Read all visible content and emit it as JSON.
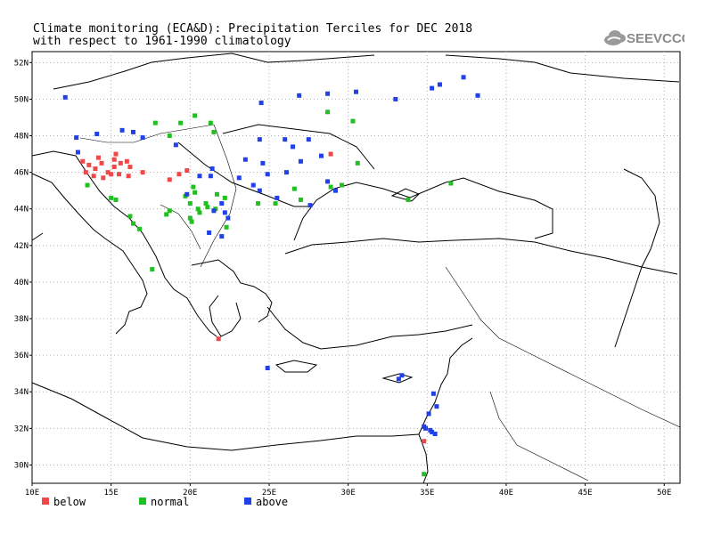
{
  "header": {
    "title_line1": "Climate monitoring (ECA&D): Precipitation Terciles for DEC 2018",
    "title_line2": "with respect to 1961-1990 climatology",
    "logo_text": "SEEVCCC"
  },
  "axes": {
    "lat_labels": [
      "52N",
      "50N",
      "48N",
      "46N",
      "44N",
      "42N",
      "40N",
      "38N",
      "36N",
      "34N",
      "32N",
      "30N"
    ],
    "lon_labels": [
      "10E",
      "15E",
      "20E",
      "25E",
      "30E",
      "35E",
      "40E",
      "45E",
      "50E"
    ]
  },
  "legend": [
    {
      "label": "below",
      "color": "#f04848"
    },
    {
      "label": "normal",
      "color": "#20c020"
    },
    {
      "label": "above",
      "color": "#2040e8"
    }
  ],
  "colors": {
    "below": "#f04848",
    "normal": "#20c020",
    "above": "#2040e8",
    "grid": "#b0b0b0"
  },
  "stations": {
    "below": [
      [
        13.2,
        46.6
      ],
      [
        13.6,
        46.4
      ],
      [
        14.0,
        46.2
      ],
      [
        14.4,
        46.5
      ],
      [
        14.8,
        46.0
      ],
      [
        15.2,
        46.3
      ],
      [
        15.6,
        46.5
      ],
      [
        16.0,
        46.6
      ],
      [
        16.2,
        46.3
      ],
      [
        13.4,
        46.0
      ],
      [
        13.9,
        45.8
      ],
      [
        14.5,
        45.7
      ],
      [
        15.0,
        45.9
      ],
      [
        15.5,
        45.9
      ],
      [
        15.2,
        46.7
      ],
      [
        14.2,
        46.8
      ],
      [
        16.1,
        45.8
      ],
      [
        15.3,
        47.0
      ],
      [
        17.0,
        46.0
      ],
      [
        18.7,
        45.6
      ],
      [
        19.3,
        45.9
      ],
      [
        19.8,
        46.1
      ],
      [
        28.9,
        47.0
      ],
      [
        21.8,
        36.9
      ],
      [
        34.8,
        31.3
      ]
    ],
    "normal": [
      [
        13.5,
        45.3
      ],
      [
        15.0,
        44.6
      ],
      [
        15.3,
        44.5
      ],
      [
        16.2,
        43.6
      ],
      [
        16.4,
        43.2
      ],
      [
        16.8,
        42.9
      ],
      [
        17.6,
        40.7
      ],
      [
        17.8,
        48.7
      ],
      [
        18.7,
        48.0
      ],
      [
        19.4,
        48.7
      ],
      [
        20.3,
        49.1
      ],
      [
        21.3,
        48.7
      ],
      [
        21.5,
        48.2
      ],
      [
        18.5,
        43.7
      ],
      [
        18.7,
        43.9
      ],
      [
        19.7,
        44.7
      ],
      [
        20.0,
        44.3
      ],
      [
        20.3,
        44.9
      ],
      [
        20.5,
        44.0
      ],
      [
        21.0,
        44.3
      ],
      [
        21.1,
        44.1
      ],
      [
        21.6,
        44.0
      ],
      [
        21.7,
        44.8
      ],
      [
        22.2,
        44.6
      ],
      [
        22.3,
        43.0
      ],
      [
        20.0,
        43.5
      ],
      [
        20.1,
        43.3
      ],
      [
        20.6,
        43.8
      ],
      [
        20.2,
        45.2
      ],
      [
        25.4,
        44.3
      ],
      [
        26.6,
        45.1
      ],
      [
        28.7,
        49.3
      ],
      [
        30.3,
        48.8
      ],
      [
        30.6,
        46.5
      ],
      [
        28.9,
        45.2
      ],
      [
        29.6,
        45.3
      ],
      [
        33.8,
        44.5
      ],
      [
        36.5,
        45.4
      ],
      [
        27.0,
        44.5
      ],
      [
        24.3,
        44.3
      ],
      [
        34.8,
        29.5
      ]
    ],
    "above": [
      [
        12.1,
        50.1
      ],
      [
        12.8,
        47.9
      ],
      [
        12.9,
        47.1
      ],
      [
        14.1,
        48.1
      ],
      [
        15.7,
        48.3
      ],
      [
        16.4,
        48.2
      ],
      [
        17.0,
        47.9
      ],
      [
        19.1,
        47.5
      ],
      [
        24.5,
        49.8
      ],
      [
        26.9,
        50.2
      ],
      [
        28.7,
        50.3
      ],
      [
        30.5,
        50.4
      ],
      [
        33.0,
        50.0
      ],
      [
        35.3,
        50.6
      ],
      [
        35.8,
        50.8
      ],
      [
        37.3,
        51.2
      ],
      [
        38.2,
        50.2
      ],
      [
        19.8,
        44.8
      ],
      [
        20.6,
        45.8
      ],
      [
        21.3,
        45.8
      ],
      [
        21.4,
        46.2
      ],
      [
        22.0,
        44.3
      ],
      [
        22.2,
        43.8
      ],
      [
        22.4,
        43.5
      ],
      [
        22.0,
        42.5
      ],
      [
        21.2,
        42.7
      ],
      [
        21.5,
        43.9
      ],
      [
        23.1,
        45.7
      ],
      [
        23.5,
        46.7
      ],
      [
        24.0,
        45.3
      ],
      [
        24.4,
        47.8
      ],
      [
        24.6,
        46.5
      ],
      [
        25.5,
        44.6
      ],
      [
        26.0,
        47.8
      ],
      [
        26.1,
        46.0
      ],
      [
        26.5,
        47.4
      ],
      [
        27.0,
        46.6
      ],
      [
        27.5,
        47.8
      ],
      [
        28.3,
        46.9
      ],
      [
        28.7,
        45.5
      ],
      [
        24.4,
        45.0
      ],
      [
        27.6,
        44.2
      ],
      [
        24.9,
        45.9
      ],
      [
        29.2,
        45.0
      ],
      [
        24.9,
        35.3
      ],
      [
        33.2,
        34.7
      ],
      [
        33.4,
        34.9
      ],
      [
        34.9,
        32.0
      ],
      [
        35.1,
        32.8
      ],
      [
        35.3,
        31.8
      ],
      [
        35.6,
        33.2
      ],
      [
        35.4,
        33.9
      ],
      [
        35.2,
        31.9
      ],
      [
        34.8,
        32.1
      ],
      [
        35.5,
        31.7
      ]
    ]
  }
}
